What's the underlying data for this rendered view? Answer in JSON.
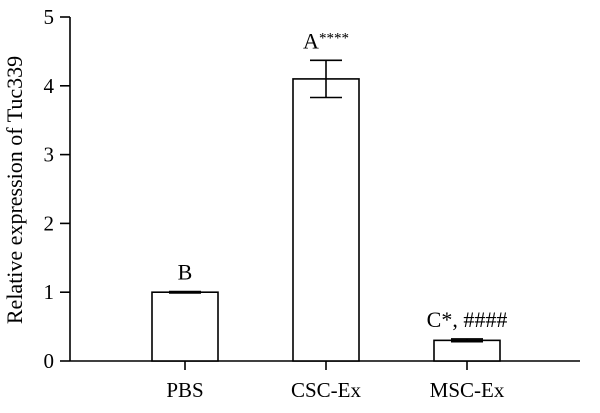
{
  "chart_data": {
    "type": "bar",
    "title": "",
    "xlabel": "",
    "ylabel": "Relative expression of Tuc339",
    "categories": [
      "PBS",
      "CSC-Ex",
      "MSC-Ex"
    ],
    "values": [
      1.0,
      4.1,
      0.3
    ],
    "error": [
      0.01,
      0.27,
      0.02
    ],
    "ylim": [
      0,
      5
    ],
    "yticks": [
      0,
      1,
      2,
      3,
      4,
      5
    ],
    "annotations": [
      {
        "letter": "B",
        "suffix": ""
      },
      {
        "letter": "A",
        "suffix": "****"
      },
      {
        "letter": "C",
        "suffix": "*, ####"
      }
    ],
    "grid": false,
    "legend": "none",
    "bar_fill": "#ffffff",
    "line_color": "#000000"
  }
}
